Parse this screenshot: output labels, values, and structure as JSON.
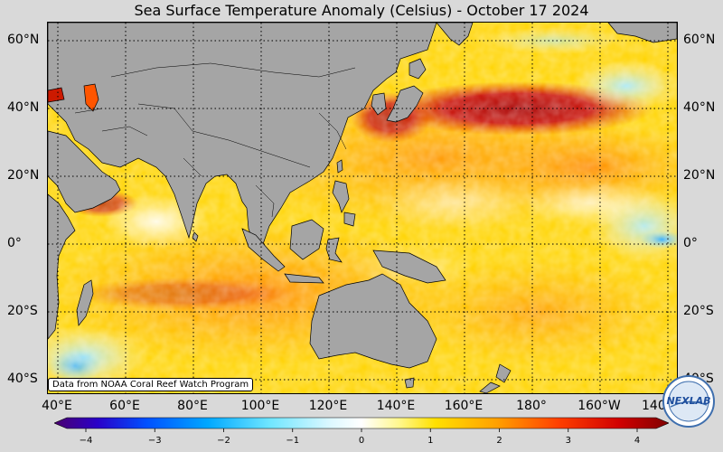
{
  "title": "Sea Surface Temperature Anomaly (Celsius) - October 17 2024",
  "credit": "Data from NOAA Coral Reef Watch Program",
  "logo_text": "NEXLAB",
  "lat_labels": [
    "60°N",
    "40°N",
    "20°N",
    "0°",
    "20°S",
    "40°S"
  ],
  "lon_labels": [
    "40°E",
    "60°E",
    "80°E",
    "100°E",
    "120°E",
    "140°E",
    "160°E",
    "180°",
    "160°W",
    "140°W"
  ],
  "colorbar": {
    "ticks": [
      "-4",
      "-3",
      "-2",
      "-1",
      "0",
      "1",
      "2",
      "3",
      "4"
    ],
    "min": -4,
    "max": 4
  },
  "colors": {
    "land": "#a5a5a5",
    "background": "#d9d9d9"
  }
}
